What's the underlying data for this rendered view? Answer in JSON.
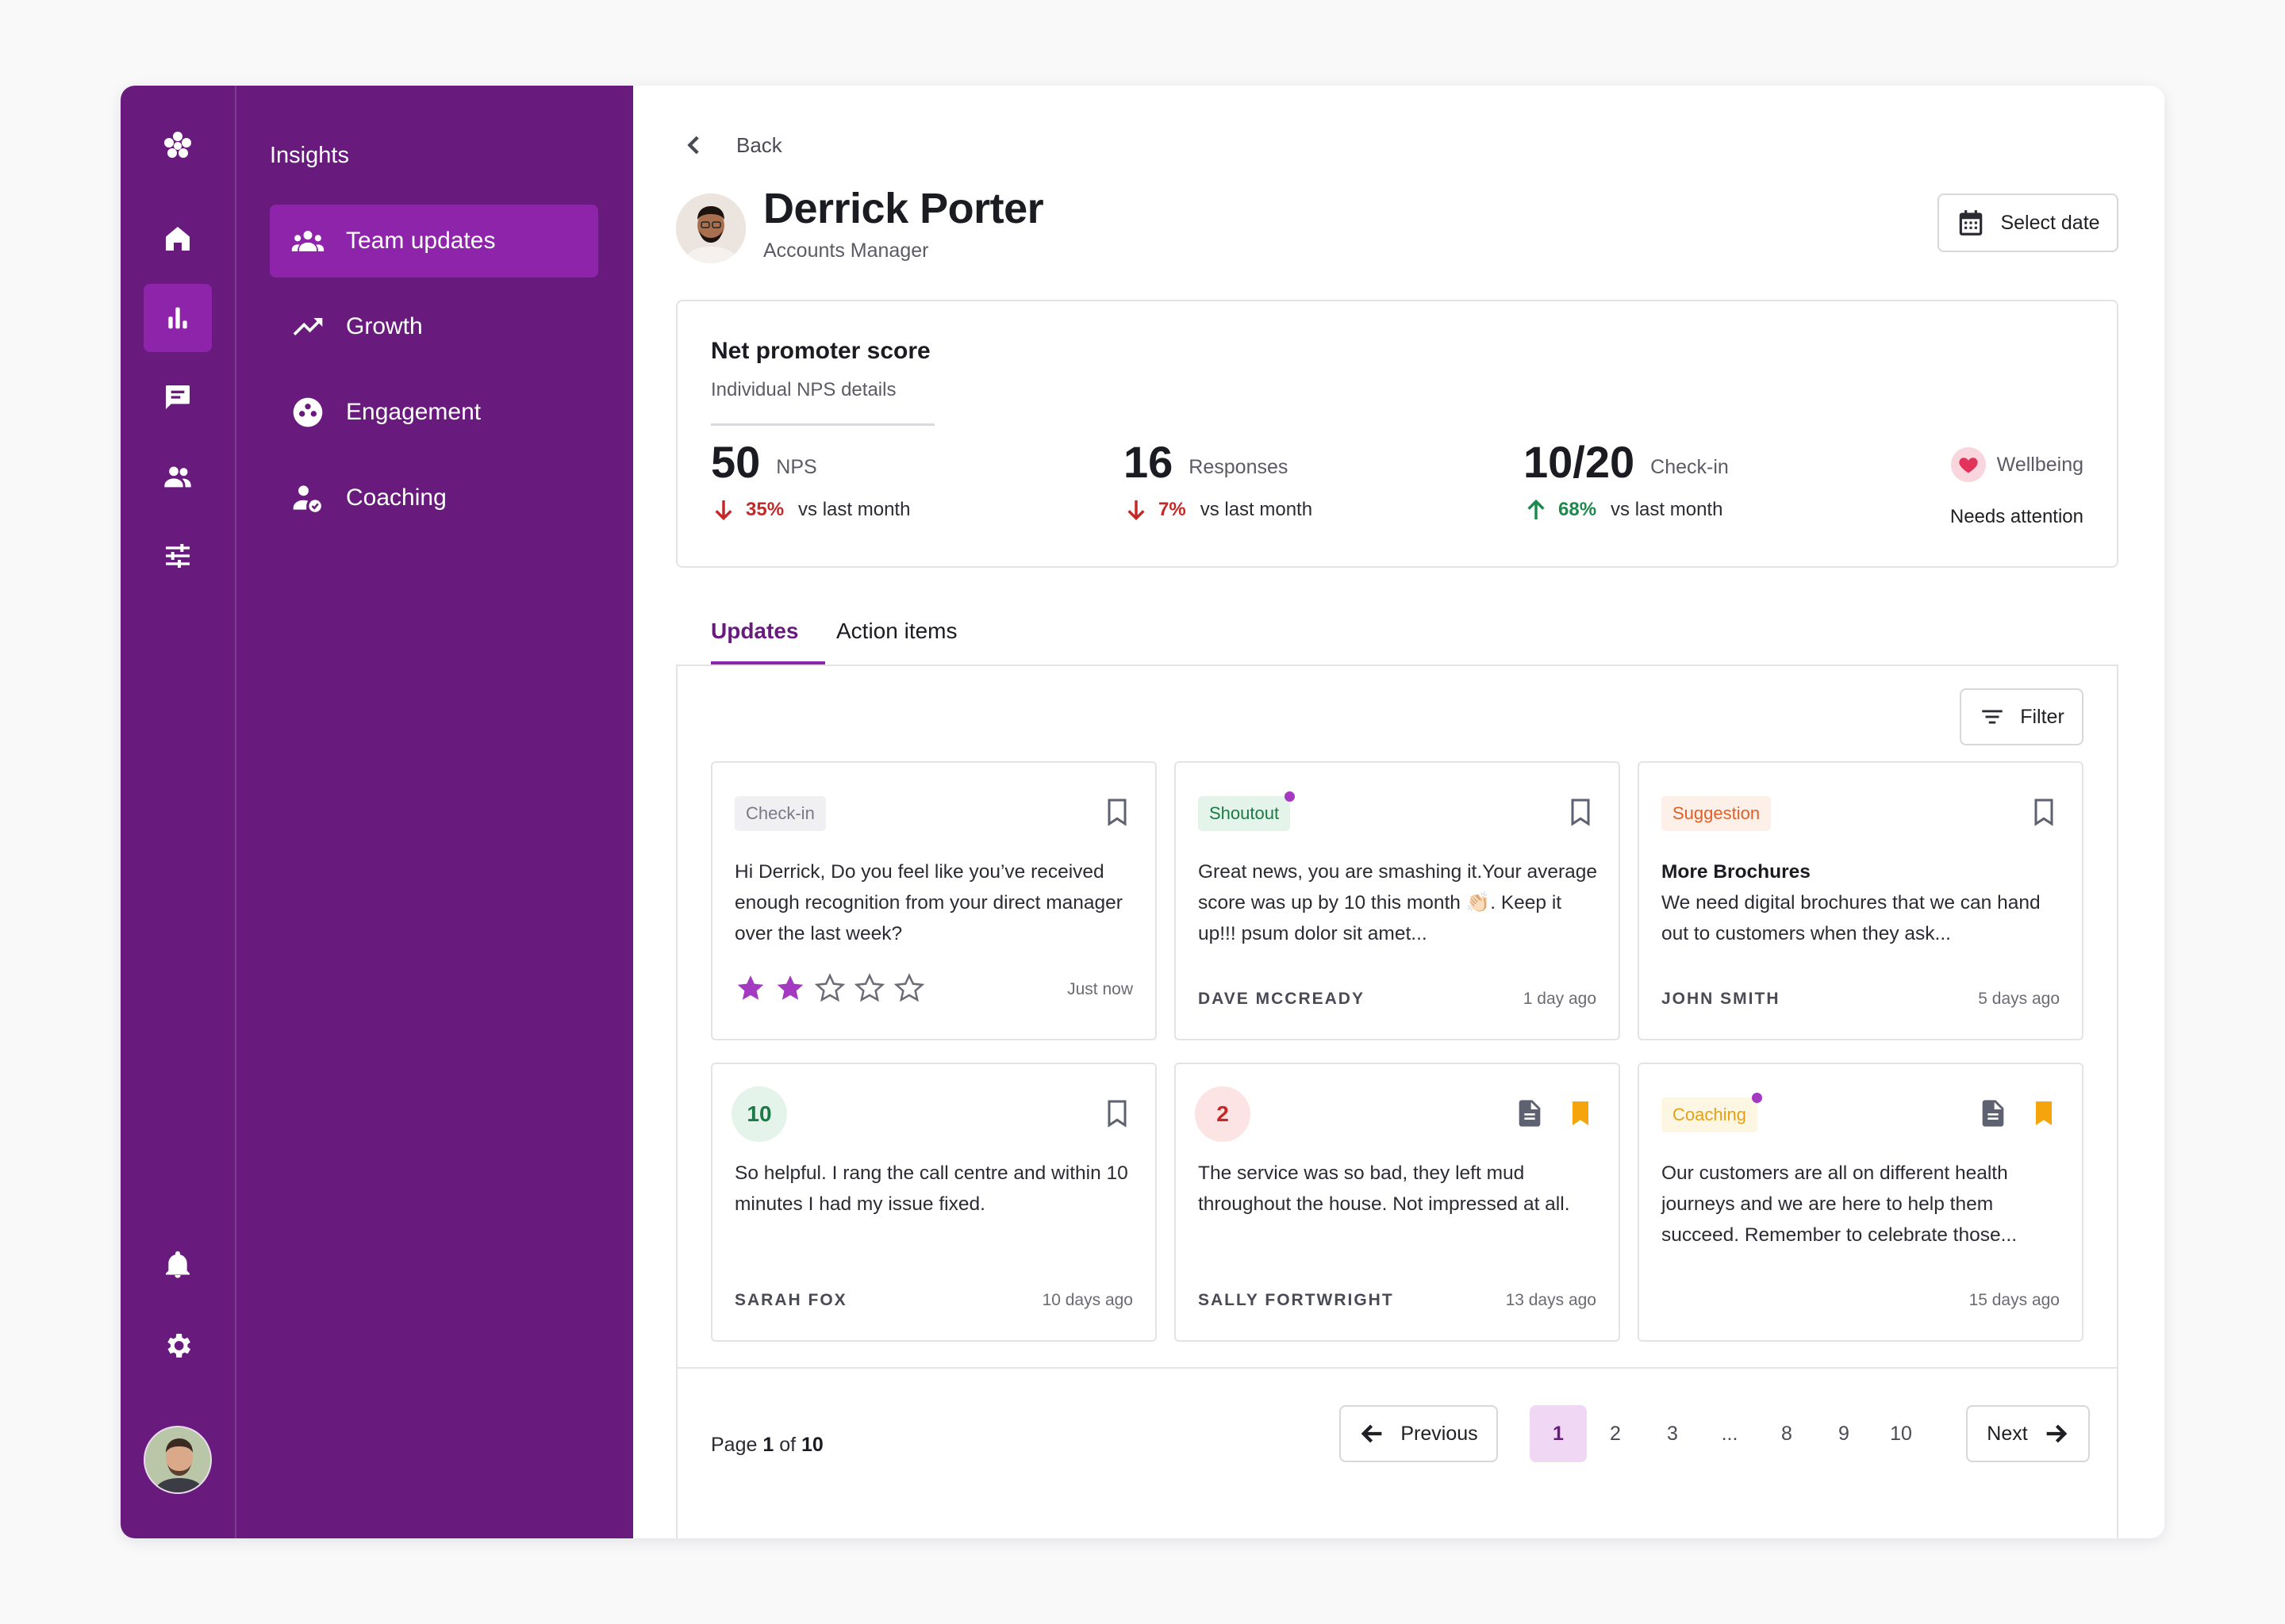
{
  "secondary_nav": {
    "heading": "Insights",
    "items": [
      {
        "label": "Team updates",
        "icon": "team-icon",
        "active": true
      },
      {
        "label": "Growth",
        "icon": "trending-up-icon",
        "active": false
      },
      {
        "label": "Engagement",
        "icon": "engagement-icon",
        "active": false
      },
      {
        "label": "Coaching",
        "icon": "coaching-icon",
        "active": false
      }
    ]
  },
  "rail": {
    "items": [
      "logo-icon",
      "home-icon",
      "insights-chart-icon",
      "messages-icon",
      "people-icon",
      "settings-sliders-icon",
      "bell-icon",
      "gear-icon"
    ],
    "active": "insights-chart-icon"
  },
  "header": {
    "back_label": "Back",
    "name": "Derrick Porter",
    "role": "Accounts Manager",
    "select_date_label": "Select date"
  },
  "nps": {
    "title": "Net promoter score",
    "subtitle": "Individual NPS details",
    "metrics": [
      {
        "value": "50",
        "label": "NPS",
        "delta": "35%",
        "direction": "down",
        "suffix": "vs last month"
      },
      {
        "value": "16",
        "label": "Responses",
        "delta": "7%",
        "direction": "down",
        "suffix": "vs last month"
      },
      {
        "value": "10/20",
        "label": "Check-in",
        "delta": "68%",
        "direction": "up",
        "suffix": "vs last month"
      }
    ],
    "wellbeing": {
      "label": "Wellbeing",
      "status": "Needs attention"
    }
  },
  "tabs": [
    {
      "label": "Updates",
      "active": true
    },
    {
      "label": "Action items",
      "active": false
    }
  ],
  "filter_label": "Filter",
  "cards": [
    {
      "tag": "Check-in",
      "body": "Hi Derrick, Do you feel like you’ve received enough recognition from your direct manager over the last week?",
      "rating": 2,
      "rating_max": 5,
      "time": "Just now"
    },
    {
      "tag": "Shoutout",
      "body": "Great news, you are smashing it.Your average score was up by 10 this month 👏🏻. Keep it up!!! psum dolor sit amet...",
      "author": "DAVE MCCREADY",
      "time": "1 day ago"
    },
    {
      "tag": "Suggestion",
      "title": "More Brochures",
      "body": "We need digital brochures that we can hand out to customers when they ask...",
      "author": "JOHN SMITH",
      "time": "5 days ago"
    },
    {
      "score": "10",
      "body": "So helpful. I rang the call centre and within 10 minutes I had my issue fixed.",
      "author": "SARAH FOX",
      "time": "10 days ago"
    },
    {
      "score": "2",
      "body": "The service was so bad, they left mud throughout the house. Not impressed at all.",
      "author": "SALLY FORTWRIGHT",
      "time": "13 days ago"
    },
    {
      "tag": "Coaching",
      "body": "Our customers are all on different health journeys and we are here to help them succeed. Remember to celebrate those...",
      "time": "15 days ago"
    }
  ],
  "pagination": {
    "page_prefix": "Page",
    "current": "1",
    "of_label": "of",
    "total": "10",
    "previous_label": "Previous",
    "next_label": "Next",
    "pages": [
      "1",
      "2",
      "3",
      "...",
      "8",
      "9",
      "10"
    ]
  },
  "colors": {
    "brand_purple": "#681a7d",
    "active_purple": "#8e24aa",
    "down_red": "#c62828",
    "up_green": "#1b8a4c",
    "bookmark_orange": "#f5a40c"
  }
}
